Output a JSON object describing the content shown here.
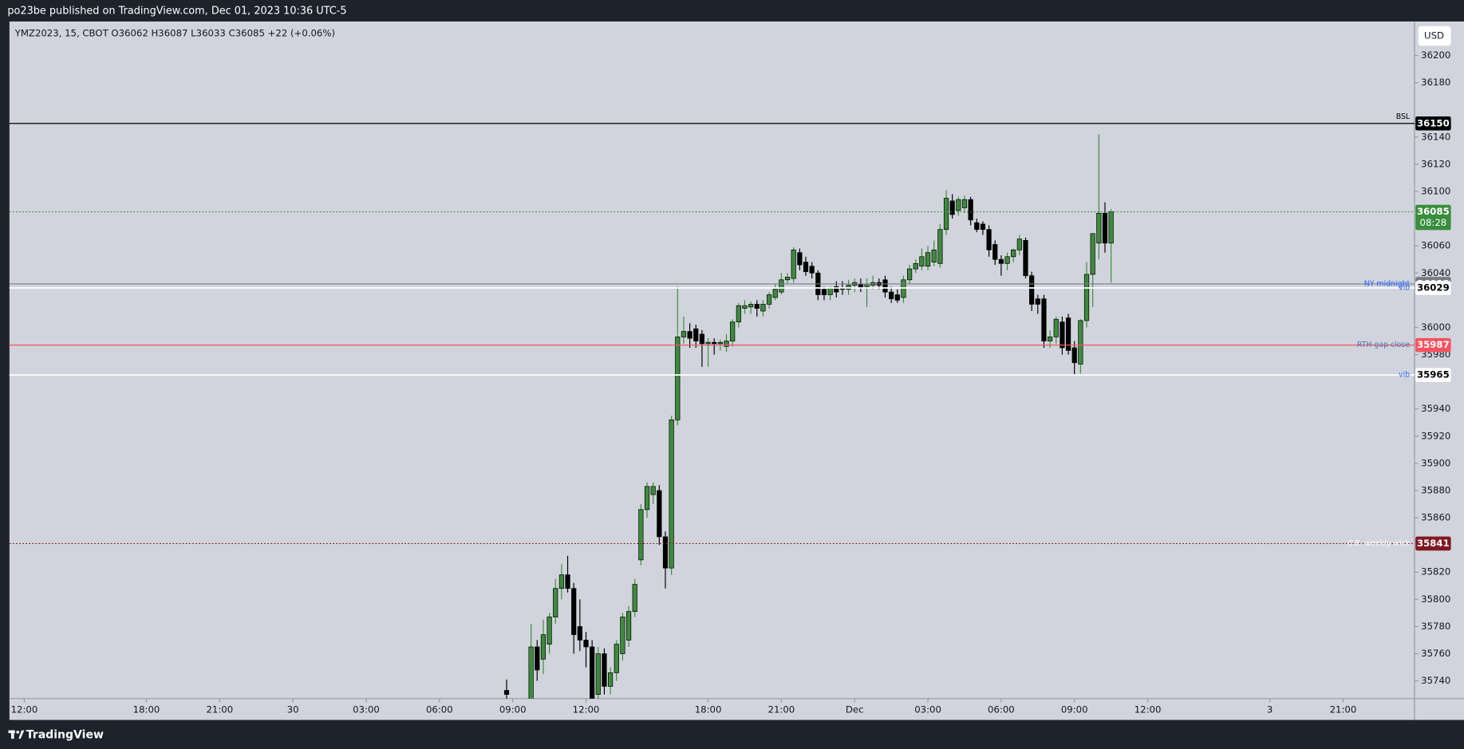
{
  "title_bar": "po23be published on TradingView.com, Dec 01, 2023 10:36 UTC-5",
  "footer": "TradingView",
  "currency": "USD",
  "chart_data": {
    "type": "candlestick",
    "title": "YMZ2023, 15, CBOT  O36062  H36087  L36033  C36085  +22 (+0.06%)",
    "up_color": "#3d8b3d",
    "down_color": "#000000",
    "border_color": "#000000",
    "grid": false,
    "xlim": [
      -2.45,
      227.7
    ],
    "xticks": [
      {
        "value": 0,
        "label": "12:00"
      },
      {
        "value": 20,
        "label": "18:00"
      },
      {
        "value": 32,
        "label": "21:00"
      },
      {
        "value": 44,
        "label": "30"
      },
      {
        "value": 56,
        "label": "03:00"
      },
      {
        "value": 68,
        "label": "06:00"
      },
      {
        "value": 80,
        "label": "09:00"
      },
      {
        "value": 92,
        "label": "12:00"
      },
      {
        "value": 112,
        "label": "18:00"
      },
      {
        "value": 124,
        "label": "21:00"
      },
      {
        "value": 136,
        "label": "Dec"
      },
      {
        "value": 148,
        "label": "03:00"
      },
      {
        "value": 160,
        "label": "06:00"
      },
      {
        "value": 172,
        "label": "09:00"
      },
      {
        "value": 184,
        "label": "12:00"
      },
      {
        "value": 204,
        "label": "3"
      },
      {
        "value": 216,
        "label": "21:00"
      }
    ],
    "ylim": [
      35727,
      36225
    ],
    "yticks": [
      36200,
      36180,
      36140,
      36120,
      36100,
      36060,
      36040,
      36000,
      35980,
      35940,
      35920,
      35900,
      35880,
      35860,
      35820,
      35800,
      35780,
      35760,
      35740
    ],
    "x": [
      79,
      83,
      84,
      85,
      86,
      87,
      88,
      89,
      90,
      91,
      92,
      93,
      94,
      95,
      96,
      97,
      98,
      99,
      100,
      101,
      102,
      103,
      104,
      105,
      106,
      107,
      108,
      109,
      110,
      111,
      112,
      113,
      114,
      115,
      116,
      117,
      118,
      119,
      120,
      121,
      122,
      123,
      124,
      125,
      126,
      127,
      128,
      129,
      130,
      131,
      132,
      133,
      134,
      135,
      136,
      137,
      138,
      139,
      140,
      141,
      142,
      143,
      144,
      145,
      146,
      147,
      148,
      149,
      150,
      151,
      152,
      153,
      154,
      155,
      156,
      157,
      158,
      159,
      160,
      161,
      162,
      163,
      164,
      165,
      166,
      167,
      168,
      169,
      170,
      171,
      172,
      173,
      174,
      175,
      176,
      177,
      178
    ],
    "open": [
      35733,
      35715,
      35765,
      35756,
      35767,
      35787,
      35808,
      35818,
      35808,
      35780,
      35770,
      35765,
      35730,
      35760,
      35736,
      35746,
      35760,
      35770,
      35791,
      35829,
      35866,
      35877,
      35880,
      35846,
      35823,
      35932,
      35993,
      35997,
      35999,
      35995,
      35988,
      35989,
      35988,
      35986,
      35990,
      36004,
      36014,
      36015,
      36017,
      36012,
      36017,
      36022,
      36026,
      36035,
      36036,
      36055,
      36048,
      36045,
      36040,
      36028,
      36024,
      36030,
      36029,
      36028,
      36031,
      36032,
      36030,
      36031,
      36033,
      36035,
      36026,
      36024,
      36022,
      36035,
      36043,
      36045,
      36045,
      36048,
      36047,
      36072,
      36093,
      36086,
      36088,
      36094,
      36077,
      36076,
      36072,
      36061,
      36050,
      36047,
      36052,
      36057,
      36064,
      36038,
      36021,
      36021,
      35990,
      35993,
      36004,
      36007,
      35985,
      35973,
      36005,
      36039,
      36062,
      36084,
      36062
    ],
    "high": [
      35741,
      35782,
      35770,
      35785,
      35790,
      35815,
      35826,
      35832,
      35812,
      35800,
      35776,
      35770,
      35765,
      35764,
      35750,
      35770,
      35790,
      35795,
      35815,
      35870,
      35886,
      35886,
      35884,
      35850,
      35935,
      36030,
      36008,
      36003,
      36002,
      35998,
      35992,
      35992,
      35991,
      35995,
      36006,
      36018,
      36020,
      36019,
      36020,
      36020,
      36026,
      36032,
      36040,
      36040,
      36059,
      36058,
      36052,
      36048,
      36042,
      36030,
      36030,
      36034,
      36034,
      36035,
      36036,
      36036,
      36036,
      36038,
      36036,
      36038,
      36030,
      36028,
      36038,
      36046,
      36050,
      36058,
      36060,
      36064,
      36076,
      36101,
      36098,
      36096,
      36097,
      36096,
      36080,
      36078,
      36075,
      36064,
      36053,
      36055,
      36058,
      36068,
      36066,
      36041,
      36024,
      36024,
      35998,
      36008,
      36008,
      36010,
      35990,
      36006,
      36048,
      36069,
      36142,
      36092,
      36087
    ],
    "low": [
      35722,
      35705,
      35740,
      35745,
      35760,
      35782,
      35800,
      35805,
      35760,
      35762,
      35750,
      35715,
      35725,
      35730,
      35730,
      35740,
      35755,
      35765,
      35787,
      35825,
      35860,
      35870,
      35840,
      35808,
      35818,
      35928,
      35988,
      35985,
      35985,
      35971,
      35971,
      35980,
      35983,
      35982,
      35986,
      36000,
      36010,
      36010,
      36008,
      36008,
      36014,
      36020,
      36024,
      36032,
      36033,
      36042,
      36038,
      36036,
      36020,
      36020,
      36020,
      36022,
      36024,
      36024,
      36026,
      36026,
      36015,
      36028,
      36028,
      36022,
      36018,
      36018,
      36018,
      36032,
      36040,
      36042,
      36042,
      36045,
      36044,
      36068,
      36080,
      36082,
      36084,
      36075,
      36070,
      36068,
      36052,
      36046,
      36038,
      36042,
      36048,
      36053,
      36036,
      36012,
      36010,
      35985,
      35985,
      35988,
      35980,
      35980,
      35965,
      35966,
      36000,
      36015,
      36050,
      36055,
      36033
    ],
    "close": [
      35730,
      35765,
      35748,
      35774,
      35787,
      35808,
      35818,
      35808,
      35774,
      35770,
      35765,
      35725,
      35760,
      35736,
      35746,
      35767,
      35787,
      35791,
      35811,
      35866,
      35883,
      35883,
      35846,
      35823,
      35932,
      35993,
      35997,
      35992,
      35990,
      35988,
      35989,
      35988,
      35989,
      35990,
      36004,
      36016,
      36016,
      36017,
      36014,
      36017,
      36024,
      36028,
      36035,
      36037,
      36057,
      36046,
      36041,
      36040,
      36024,
      36024,
      36029,
      36026,
      36028,
      36031,
      36033,
      36029,
      36032,
      36033,
      36031,
      36026,
      36021,
      36020,
      36035,
      36043,
      36047,
      36052,
      36055,
      36057,
      36072,
      36095,
      36083,
      36094,
      36094,
      36079,
      36072,
      36072,
      36057,
      36050,
      36047,
      36052,
      36057,
      36065,
      36038,
      36017,
      36017,
      35990,
      35993,
      36006,
      35985,
      35983,
      35974,
      36005,
      36039,
      36069,
      36084,
      36062,
      36085
    ],
    "levels": [
      {
        "name": "BSL",
        "value": 36150,
        "color": "#000000",
        "style": "solid",
        "tag_color": "#000000",
        "tag_text_color": "#ffffff",
        "name_color": "#000000"
      },
      {
        "value": 36085,
        "color": "#388e3c",
        "style": "dotted",
        "tag_color": "#388e3c",
        "tag_text_color": "#ffffff",
        "countdown": "08:28"
      },
      {
        "name": "NY midnight",
        "value": 36032,
        "color": "#787b86",
        "style": "solid",
        "tag_color": "#787b86",
        "tag_text_color": "#ffffff",
        "name_color": "#2962ff"
      },
      {
        "name": "vib",
        "value": 36029,
        "color": "#ffffff",
        "style": "solid",
        "tag_color": "#ffffff",
        "tag_text_color": "#000000",
        "name_color": "#2962ff"
      },
      {
        "name": "RTH gap close",
        "value": 35987,
        "color": "#f7525f",
        "style": "solid",
        "tag_color": "#f7525f",
        "tag_text_color": "#ffffff",
        "name_color": "#4a7ab8"
      },
      {
        "name": "vib",
        "value": 35965,
        "color": "#ffffff",
        "style": "solid",
        "tag_color": "#ffffff",
        "tag_text_color": "#000000",
        "name_color": "#2962ff"
      },
      {
        "name": "C.E. weekly wick",
        "value": 35841,
        "color": "#801922",
        "style": "dotted",
        "tag_color": "#801922",
        "tag_text_color": "#ffffff",
        "name_color": "#ffffff"
      }
    ]
  }
}
